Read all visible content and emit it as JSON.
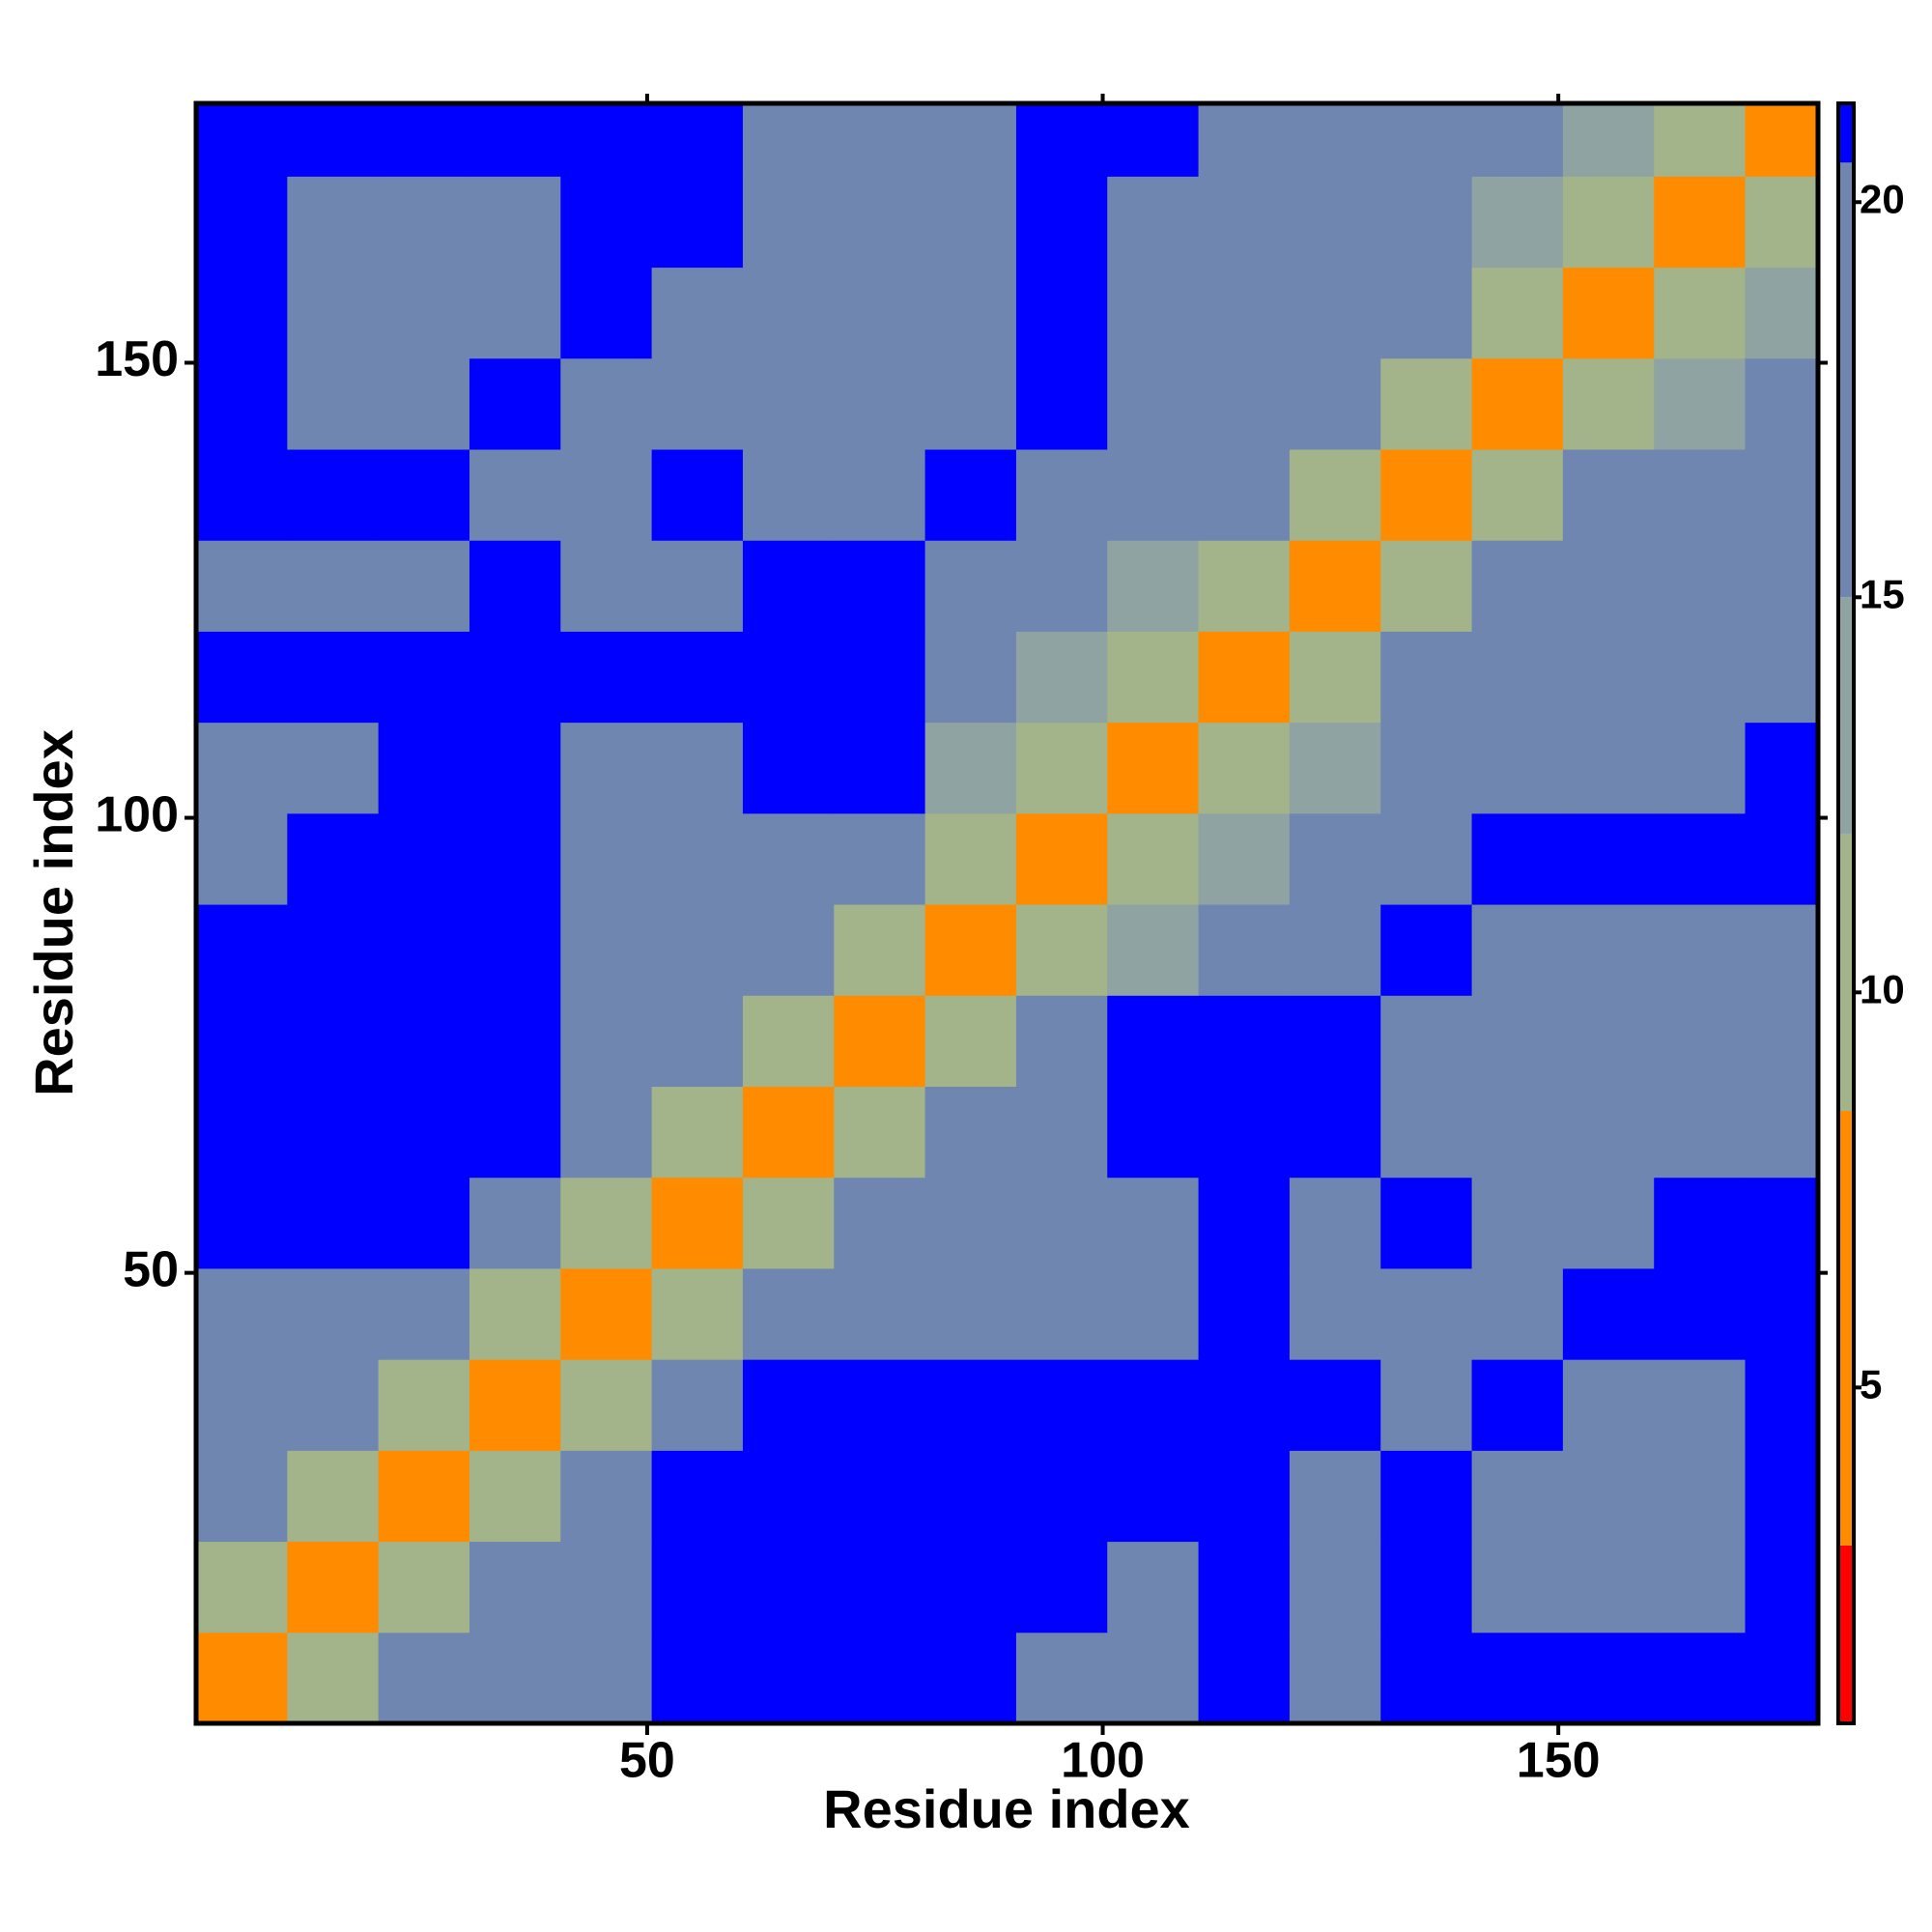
{
  "chart_data": {
    "type": "heatmap",
    "xlabel": "Residue index",
    "ylabel": "Residue index",
    "xlim": [
      0.5,
      178.5
    ],
    "ylim": [
      0.5,
      178.5
    ],
    "xticks": [
      50,
      100,
      150
    ],
    "yticks": [
      50,
      100,
      150
    ],
    "xbins": [
      0.5,
      10.5,
      20.5,
      30.5,
      40.5,
      50.5,
      60.5,
      70.5,
      80.5,
      90.5,
      100.5,
      110.5,
      120.5,
      130.5,
      140.5,
      150.5,
      160.5,
      170.5,
      178.5
    ],
    "ybins": [
      0.5,
      10.5,
      20.5,
      30.5,
      40.5,
      50.5,
      60.5,
      70.5,
      80.5,
      90.5,
      100.5,
      110.5,
      120.5,
      130.5,
      140.5,
      150.5,
      160.5,
      170.5,
      178.5
    ],
    "z": [
      [
        5,
        11,
        16,
        17,
        17,
        21,
        21,
        21,
        21,
        18,
        17,
        21,
        17,
        21,
        21,
        21,
        21,
        21
      ],
      [
        11,
        5,
        11,
        15,
        16,
        21,
        21,
        21,
        21,
        21,
        18,
        21,
        17,
        21,
        17,
        17,
        18,
        21
      ],
      [
        16,
        11,
        5,
        11,
        15,
        21,
        21,
        21,
        21,
        21,
        21,
        21,
        18,
        21,
        17,
        17,
        18,
        21
      ],
      [
        17,
        15,
        11,
        5,
        11,
        16,
        21,
        21,
        21,
        21,
        21,
        21,
        21,
        16,
        21,
        17,
        18,
        21
      ],
      [
        17,
        16,
        15,
        11,
        5,
        11,
        17,
        18,
        17,
        16,
        17,
        21,
        15,
        16,
        16,
        21,
        21,
        21
      ],
      [
        21,
        21,
        21,
        16,
        11,
        5,
        11,
        15,
        16,
        16,
        17,
        21,
        17,
        21,
        16,
        16,
        21,
        21
      ],
      [
        21,
        21,
        21,
        21,
        17,
        11,
        5,
        11,
        15,
        16,
        21,
        21,
        21,
        17,
        16,
        16,
        17,
        17
      ],
      [
        21,
        21,
        21,
        21,
        18,
        15,
        11,
        5,
        11,
        16,
        21,
        21,
        21,
        17,
        16,
        17,
        17,
        16
      ],
      [
        21,
        21,
        21,
        21,
        17,
        16,
        15,
        11,
        5,
        11,
        14,
        15,
        17,
        21,
        17,
        16,
        17,
        16
      ],
      [
        18,
        21,
        21,
        21,
        16,
        16,
        16,
        16,
        11,
        5,
        11,
        14,
        17,
        18,
        21,
        21,
        21,
        21
      ],
      [
        17,
        18,
        21,
        21,
        17,
        17,
        21,
        21,
        14,
        11,
        5,
        11,
        14,
        15,
        16,
        17,
        18,
        21
      ],
      [
        21,
        21,
        21,
        21,
        21,
        21,
        21,
        21,
        15,
        14,
        11,
        5,
        11,
        16,
        15,
        16,
        17,
        17
      ],
      [
        17,
        17,
        18,
        21,
        15,
        17,
        21,
        21,
        17,
        17,
        14,
        11,
        5,
        11,
        15,
        15,
        16,
        17
      ],
      [
        21,
        21,
        21,
        16,
        16,
        21,
        17,
        17,
        21,
        18,
        15,
        16,
        11,
        5,
        11,
        15,
        16,
        16
      ],
      [
        21,
        17,
        17,
        21,
        16,
        16,
        16,
        16,
        17,
        21,
        16,
        15,
        15,
        11,
        5,
        11,
        14,
        17
      ],
      [
        21,
        17,
        17,
        17,
        21,
        16,
        16,
        17,
        16,
        21,
        17,
        16,
        15,
        15,
        11,
        5,
        11,
        14
      ],
      [
        21,
        18,
        18,
        18,
        21,
        21,
        17,
        17,
        17,
        21,
        18,
        17,
        16,
        16,
        14,
        11,
        5,
        11
      ],
      [
        21,
        21,
        21,
        21,
        21,
        21,
        17,
        16,
        16,
        21,
        21,
        17,
        17,
        16,
        17,
        14,
        11,
        5
      ]
    ],
    "clim": [
      0.75,
      21.25
    ],
    "cticks": [
      5,
      10,
      15,
      20
    ],
    "colorscale": [
      {
        "value": 0.75,
        "color": "#ff0000"
      },
      {
        "value": 3,
        "color": "#ff8c00"
      },
      {
        "value": 8.5,
        "color": "#a3b38a"
      },
      {
        "value": 12,
        "color": "#8fa3a2"
      },
      {
        "value": 15,
        "color": "#6f86b0"
      },
      {
        "value": 20.5,
        "color": "#0000ff"
      }
    ]
  }
}
